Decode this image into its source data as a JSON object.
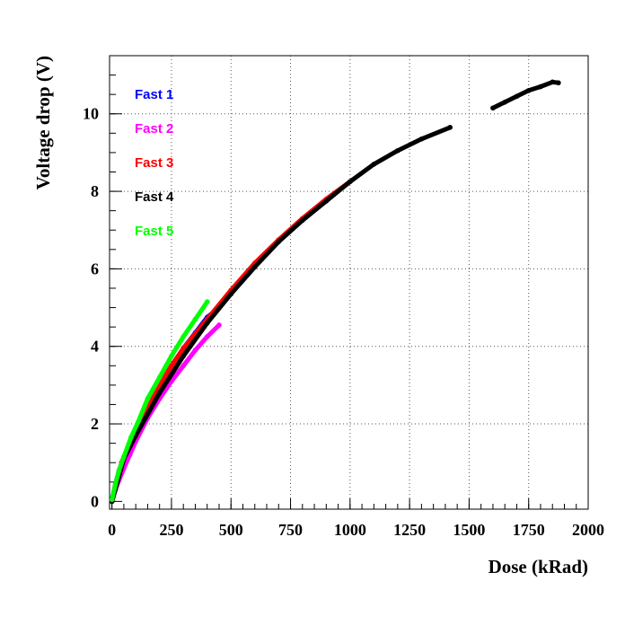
{
  "chart_data": {
    "type": "line",
    "title": "",
    "xlabel": "Dose (kRad)",
    "ylabel": "Voltage drop (V)",
    "xlim": [
      -10,
      2000
    ],
    "ylim": [
      -0.2,
      11.5
    ],
    "xticks": [
      0,
      250,
      500,
      750,
      1000,
      1250,
      1500,
      1750,
      2000
    ],
    "yticks": [
      0,
      2,
      4,
      6,
      8,
      10
    ],
    "grid": true,
    "legend_position": "top-left",
    "series": [
      {
        "name": "Fast 1",
        "color": "#0000ff",
        "x": [
          0,
          15,
          30,
          50,
          80,
          110,
          150,
          200,
          250,
          300,
          350,
          400,
          450
        ],
        "y": [
          0.05,
          0.45,
          0.8,
          1.15,
          1.6,
          2.0,
          2.5,
          3.0,
          3.5,
          3.95,
          4.35,
          4.75,
          5.0
        ]
      },
      {
        "name": "Fast 2",
        "color": "#ff00ff",
        "x": [
          0,
          15,
          30,
          50,
          75,
          100,
          150,
          200,
          250,
          300,
          350,
          400,
          450
        ],
        "y": [
          0.0,
          0.3,
          0.55,
          0.85,
          1.2,
          1.55,
          2.15,
          2.65,
          3.1,
          3.5,
          3.9,
          4.25,
          4.55
        ]
      },
      {
        "name": "Fast 3",
        "color": "#ff0000",
        "x": [
          40,
          80,
          120,
          160,
          200,
          250,
          300,
          400,
          500,
          600,
          700,
          800,
          900,
          1000
        ],
        "y": [
          1.0,
          1.6,
          2.1,
          2.6,
          3.0,
          3.5,
          3.95,
          4.7,
          5.45,
          6.15,
          6.75,
          7.3,
          7.8,
          8.25
        ]
      },
      {
        "name": "Fast 4",
        "color": "#000000",
        "x": [
          0,
          50,
          100,
          200,
          300,
          400,
          500,
          600,
          700,
          800,
          900,
          1000,
          1100,
          1200,
          1300,
          1420,
          null,
          1600,
          1650,
          1700,
          1750,
          1800,
          1850,
          1875
        ],
        "y": [
          0.0,
          1.1,
          1.7,
          2.8,
          3.75,
          4.6,
          5.35,
          6.05,
          6.7,
          7.25,
          7.75,
          8.25,
          8.7,
          9.05,
          9.35,
          9.65,
          null,
          10.15,
          10.3,
          10.45,
          10.6,
          10.7,
          10.82,
          10.8
        ]
      },
      {
        "name": "Fast 5",
        "color": "#00ff00",
        "x": [
          0,
          15,
          30,
          50,
          80,
          110,
          150,
          200,
          250,
          300,
          350,
          400
        ],
        "y": [
          0.05,
          0.45,
          0.8,
          1.15,
          1.65,
          2.05,
          2.65,
          3.2,
          3.75,
          4.25,
          4.7,
          5.15
        ]
      }
    ]
  }
}
